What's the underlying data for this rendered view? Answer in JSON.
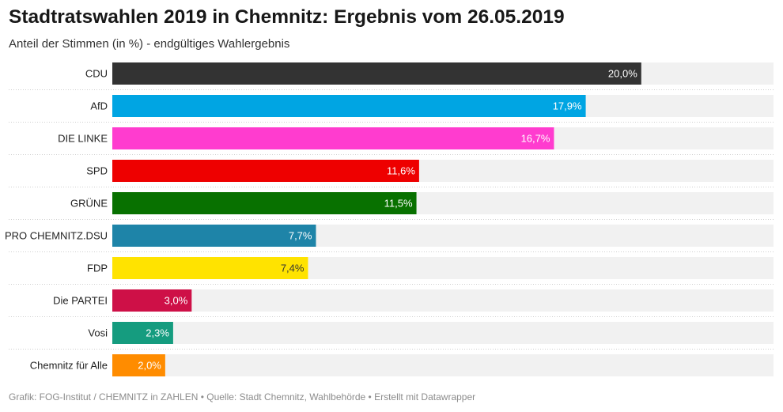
{
  "title": "Stadtratswahlen 2019 in Chemnitz: Ergebnis vom 26.05.2019",
  "subtitle": "Anteil der Stimmen (in %) - endgültiges Wahlergebnis",
  "footer": "Grafik: FOG-Institut / CHEMNITZ in ZAHLEN • Quelle: Stadt Chemnitz, Wahlbehörde • Erstellt mit Datawrapper",
  "chart_data": {
    "type": "bar",
    "orientation": "horizontal",
    "categories": [
      "CDU",
      "AfD",
      "DIE LINKE",
      "SPD",
      "GRÜNE",
      "PRO CHEMNITZ.DSU",
      "FDP",
      "Die PARTEI",
      "Vosi",
      "Chemnitz für Alle"
    ],
    "values": [
      20.0,
      17.9,
      16.7,
      11.6,
      11.5,
      7.7,
      7.4,
      3.0,
      2.3,
      2.0
    ],
    "value_labels": [
      "20,0%",
      "17,9%",
      "16,7%",
      "11,6%",
      "11,5%",
      "7,7%",
      "7,4%",
      "3,0%",
      "2,3%",
      "2,0%"
    ],
    "colors": [
      "#333333",
      "#00a5e3",
      "#ff3ccf",
      "#ee0000",
      "#087100",
      "#1e84a8",
      "#ffe300",
      "#ce1047",
      "#159c7f",
      "#ff8c00"
    ],
    "label_colors": [
      "#ffffff",
      "#ffffff",
      "#ffffff",
      "#ffffff",
      "#ffffff",
      "#ffffff",
      "#333333",
      "#ffffff",
      "#ffffff",
      "#ffffff"
    ],
    "track_color": "#f1f1f1",
    "xlim": [
      0,
      25
    ],
    "grid": false,
    "legend": false
  }
}
